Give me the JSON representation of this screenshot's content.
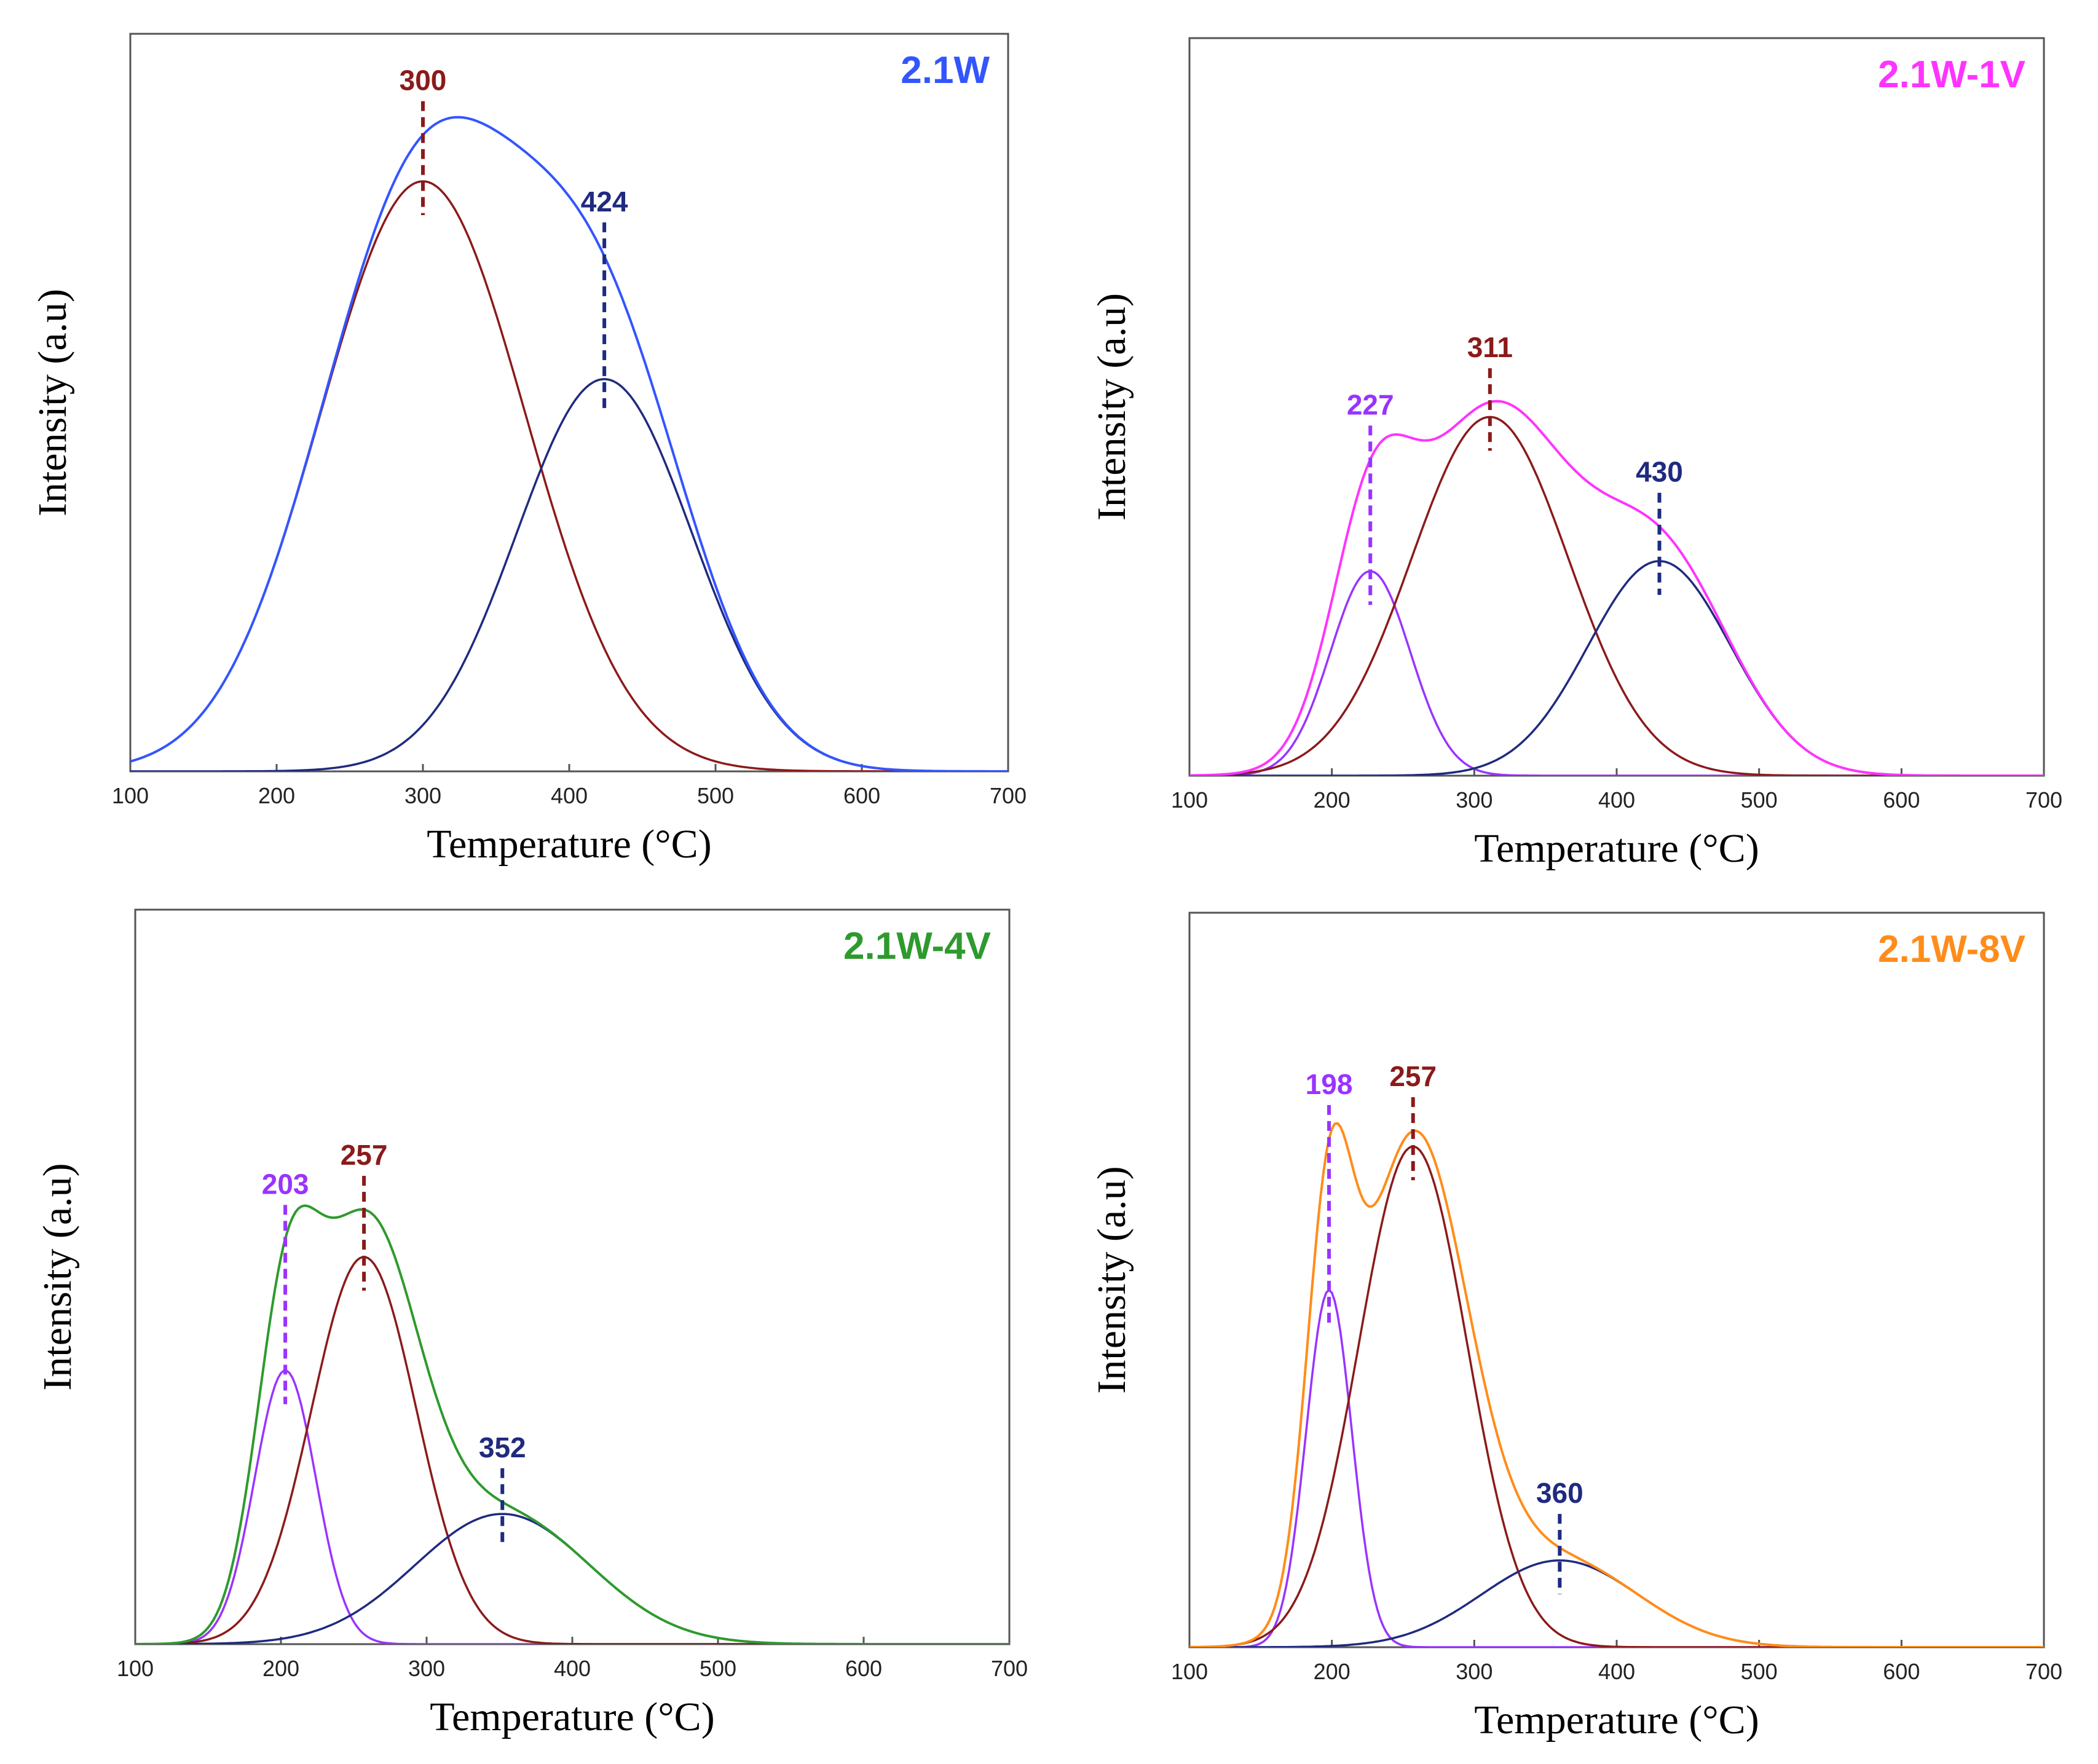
{
  "colors": {
    "overall_2_1W": "#3355ff",
    "overall_2_1W_1V": "#ff33ff",
    "overall_2_1W_4V": "#2e9a2e",
    "overall_2_1W_8V": "#ff8c1a",
    "peak_low": "#9933ff",
    "peak_mid": "#8b1a1a",
    "peak_high": "#1f2a80"
  },
  "chart_data": [
    {
      "type": "line",
      "panel": "top-left",
      "title": "2.1W",
      "xlabel": "Temperature (°C)",
      "ylabel": "Intensity (a.u)",
      "xlim": [
        100,
        700
      ],
      "ylim": [
        0,
        1.1
      ],
      "xticks": [
        "100",
        "200",
        "300",
        "400",
        "500",
        "600",
        "700"
      ],
      "overall_color_key": "overall_2_1W",
      "peaks": [
        {
          "label": "300",
          "center": 300,
          "height": 0.88,
          "sigma": 70,
          "color_key": "peak_mid"
        },
        {
          "label": "424",
          "center": 424,
          "height": 0.585,
          "sigma": 60,
          "color_key": "peak_high"
        }
      ]
    },
    {
      "type": "line",
      "panel": "top-right",
      "title": "2.1W-1V",
      "xlabel": "Temperature (°C)",
      "ylabel": "Intensity (a.u)",
      "xlim": [
        100,
        700
      ],
      "ylim": [
        0,
        1.1
      ],
      "xticks": [
        "100",
        "200",
        "300",
        "400",
        "500",
        "600",
        "700"
      ],
      "overall_color_key": "overall_2_1W_1V",
      "peaks": [
        {
          "label": "227",
          "center": 227,
          "height": 0.305,
          "sigma": 28,
          "color_key": "peak_low"
        },
        {
          "label": "311",
          "center": 311,
          "height": 0.535,
          "sigma": 55,
          "color_key": "peak_mid"
        },
        {
          "label": "430",
          "center": 430,
          "height": 0.32,
          "sigma": 50,
          "color_key": "peak_high"
        }
      ]
    },
    {
      "type": "line",
      "panel": "bottom-left",
      "title": "2.1W-4V",
      "xlabel": "Temperature (°C)",
      "ylabel": "Intensity (a.u)",
      "xlim": [
        100,
        700
      ],
      "ylim": [
        0,
        1.1
      ],
      "xticks": [
        "100",
        "200",
        "300",
        "400",
        "500",
        "600",
        "700"
      ],
      "overall_color_key": "overall_2_1W_4V",
      "peaks": [
        {
          "label": "203",
          "center": 203,
          "height": 0.41,
          "sigma": 21,
          "color_key": "peak_low"
        },
        {
          "label": "257",
          "center": 257,
          "height": 0.58,
          "sigma": 36,
          "color_key": "peak_mid"
        },
        {
          "label": "352",
          "center": 352,
          "height": 0.195,
          "sigma": 60,
          "color_key": "peak_high"
        }
      ]
    },
    {
      "type": "line",
      "panel": "bottom-right",
      "title": "2.1W-8V",
      "xlabel": "Temperature (°C)",
      "ylabel": "Intensity (a.u)",
      "xlim": [
        100,
        700
      ],
      "ylim": [
        0,
        1.1
      ],
      "xticks": [
        "100",
        "200",
        "300",
        "400",
        "500",
        "600",
        "700"
      ],
      "overall_color_key": "overall_2_1W_8V",
      "peaks": [
        {
          "label": "198",
          "center": 198,
          "height": 0.535,
          "sigma": 16,
          "color_key": "peak_low"
        },
        {
          "label": "257",
          "center": 257,
          "height": 0.75,
          "sigma": 38,
          "color_key": "peak_mid"
        },
        {
          "label": "360",
          "center": 360,
          "height": 0.13,
          "sigma": 55,
          "color_key": "peak_high"
        }
      ]
    }
  ]
}
